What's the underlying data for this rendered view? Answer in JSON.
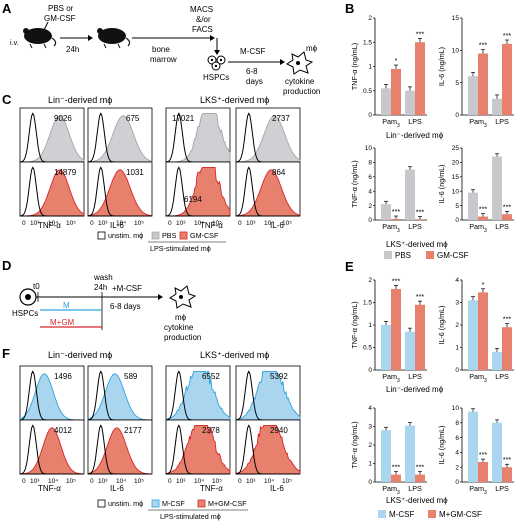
{
  "panel_labels": [
    "A",
    "B",
    "C",
    "D",
    "E",
    "F"
  ],
  "colors": {
    "gray": "#c8c8cc",
    "red": "#e8806e",
    "red_dark": "#d6272c",
    "blue": "#a9d5ef",
    "blue_dark": "#2fa3d9"
  },
  "panel_a": {
    "inject": "i.v.",
    "treat": [
      "PBS or",
      "GM-CSF"
    ],
    "time": "24h",
    "bm": [
      "bone",
      "marrow"
    ],
    "sort": [
      "MACS",
      "&/or",
      "FACS"
    ],
    "hspc": "HSPCs",
    "mcsf": "M-CSF",
    "days": [
      "6-8",
      "days"
    ],
    "mphi": "mϕ",
    "prod": [
      "cytokine",
      "production"
    ]
  },
  "panel_c": {
    "left_title": "Lin⁻-derived mϕ",
    "right_title": "LKS⁺-derived mϕ",
    "values": [
      "9026",
      "675",
      "17021",
      "2737",
      "14879",
      "1031",
      "6194",
      "864"
    ],
    "xlabels": [
      "TNF-α",
      "IL-6",
      "TNF-α",
      "IL-6"
    ],
    "legend": [
      "unstim. mϕ",
      "PBS",
      "GM-CSF"
    ],
    "stim_label": "LPS-stimulated mϕ"
  },
  "panel_b": {
    "top_caption": "Lin⁻-derived mϕ",
    "bottom_caption": "LKS⁺-derived mϕ",
    "legend": [
      "PBS",
      "GM-CSF"
    ]
  },
  "panel_d": {
    "hspc": "HSPCs",
    "t0": "t0",
    "wash": [
      "wash",
      "24h"
    ],
    "m": "M",
    "mgm": "M+GM",
    "mcsf": "+M-CSF",
    "days": "6-8 days",
    "mphi": "mϕ",
    "prod": [
      "cytokine",
      "production"
    ]
  },
  "panel_f": {
    "left_title": "Lin⁻-derived mϕ",
    "right_title": "LKS⁺-derived mϕ",
    "values": [
      "1496",
      "589",
      "6552",
      "5392",
      "4012",
      "2177",
      "2378",
      "2940"
    ],
    "xlabels": [
      "TNF-α",
      "IL-6",
      "TNF-α",
      "IL-6"
    ],
    "legend": [
      "unstim. mϕ",
      "M-CSF",
      "M+GM-CSF"
    ],
    "stim_label": "LPS-stimulated mϕ"
  },
  "panel_e": {
    "top_caption": "Lin⁻-derived mϕ",
    "bottom_caption": "LKS⁺-derived mϕ",
    "legend": [
      "M-CSF",
      "M+GM-CSF"
    ]
  },
  "chart_data": [
    {
      "id": "B-top-TNF",
      "type": "bar",
      "categories": [
        "Pam3",
        "LPS"
      ],
      "ylabel": "TNF-α (ng/mL)",
      "ylim": [
        0,
        2
      ],
      "yticks": [
        0,
        0.5,
        1,
        1.5,
        2
      ],
      "series": [
        {
          "name": "PBS",
          "values": [
            0.55,
            0.5
          ]
        },
        {
          "name": "GM-CSF",
          "values": [
            0.95,
            1.5
          ]
        }
      ],
      "stars": [
        "*",
        "***"
      ]
    },
    {
      "id": "B-top-IL6",
      "type": "bar",
      "categories": [
        "Pam3",
        "LPS"
      ],
      "ylabel": "IL-6 (ng/mL)",
      "ylim": [
        0,
        15
      ],
      "yticks": [
        0,
        5,
        10,
        15
      ],
      "series": [
        {
          "name": "PBS",
          "values": [
            6,
            2.5
          ]
        },
        {
          "name": "GM-CSF",
          "values": [
            9.5,
            11
          ]
        }
      ],
      "stars": [
        "***",
        "***"
      ]
    },
    {
      "id": "B-bot-TNF",
      "type": "bar",
      "categories": [
        "Pam3",
        "LPS"
      ],
      "ylabel": "TNF-α (ng/mL)",
      "ylim": [
        0,
        10
      ],
      "yticks": [
        0,
        2,
        4,
        6,
        8,
        10
      ],
      "series": [
        {
          "name": "PBS",
          "values": [
            2.2,
            7
          ]
        },
        {
          "name": "GM-CSF",
          "values": [
            0.15,
            0.1
          ]
        }
      ],
      "stars": [
        "***",
        "***"
      ]
    },
    {
      "id": "B-bot-IL6",
      "type": "bar",
      "categories": [
        "Pam3",
        "LPS"
      ],
      "ylabel": "IL-6 (ng/mL)",
      "ylim": [
        0,
        25
      ],
      "yticks": [
        0,
        5,
        10,
        15,
        20,
        25
      ],
      "series": [
        {
          "name": "PBS",
          "values": [
            9.5,
            22
          ]
        },
        {
          "name": "GM-CSF",
          "values": [
            1.2,
            2
          ]
        }
      ],
      "stars": [
        "***",
        "***"
      ]
    },
    {
      "id": "E-top-TNF",
      "type": "bar",
      "categories": [
        "Pam3",
        "LPS"
      ],
      "ylabel": "TNF-α (ng/mL)",
      "ylim": [
        0,
        2
      ],
      "yticks": [
        0,
        0.5,
        1,
        1.5,
        2
      ],
      "series": [
        {
          "name": "M-CSF",
          "values": [
            1,
            0.85
          ]
        },
        {
          "name": "M+GM-CSF",
          "values": [
            1.8,
            1.45
          ]
        }
      ],
      "stars": [
        "***",
        "***"
      ]
    },
    {
      "id": "E-top-IL6",
      "type": "bar",
      "categories": [
        "Pam3",
        "LPS"
      ],
      "ylabel": "IL-6 (ng/mL)",
      "ylim": [
        0,
        4
      ],
      "yticks": [
        0,
        1,
        2,
        3,
        4
      ],
      "series": [
        {
          "name": "M-CSF",
          "values": [
            3.1,
            0.8
          ]
        },
        {
          "name": "M+GM-CSF",
          "values": [
            3.45,
            1.9
          ]
        }
      ],
      "stars": [
        "*",
        "***"
      ]
    },
    {
      "id": "E-bot-TNF",
      "type": "bar",
      "categories": [
        "Pam3",
        "LPS"
      ],
      "ylabel": "TNF-α (ng/mL)",
      "ylim": [
        0,
        4
      ],
      "yticks": [
        0,
        1,
        2,
        3,
        4
      ],
      "series": [
        {
          "name": "M-CSF",
          "values": [
            2.8,
            3.05
          ]
        },
        {
          "name": "M+GM-CSF",
          "values": [
            0.4,
            0.4
          ]
        }
      ],
      "stars": [
        "***",
        "***"
      ]
    },
    {
      "id": "E-bot-IL6",
      "type": "bar",
      "categories": [
        "Pam3",
        "LPS"
      ],
      "ylabel": "IL-6 (ng/mL)",
      "ylim": [
        0,
        10
      ],
      "yticks": [
        0,
        2,
        4,
        6,
        8,
        10
      ],
      "series": [
        {
          "name": "M-CSF",
          "values": [
            9.5,
            8
          ]
        },
        {
          "name": "M+GM-CSF",
          "values": [
            2.7,
            2
          ]
        }
      ],
      "stars": [
        "***",
        "***"
      ]
    }
  ]
}
